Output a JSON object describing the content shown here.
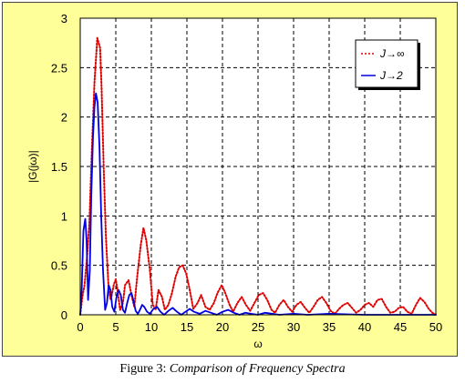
{
  "caption": {
    "prefix": "Figure 3:",
    "title": "Comparison of Frequency Spectra"
  },
  "colors": {
    "panel_background": "#ffff99",
    "plot_background": "#ffffff",
    "grid": "#000000",
    "series_j_inf": "#e00000",
    "series_j_2": "#0000dd"
  },
  "chart_data": {
    "type": "line",
    "xlabel": "ω",
    "ylabel": "|G(jω)|",
    "xlim": [
      0,
      50
    ],
    "ylim": [
      0,
      3
    ],
    "xticks": [
      0,
      5,
      10,
      15,
      20,
      25,
      30,
      35,
      40,
      45,
      50
    ],
    "yticks": [
      0,
      0.5,
      1,
      1.5,
      2,
      2.5,
      3
    ],
    "ytick_labels": [
      "0",
      "0.5",
      "1",
      "1.5",
      "2",
      "2.5",
      "3"
    ],
    "grid": true,
    "grid_style": "dashed",
    "legend_position": "top-right",
    "series": [
      {
        "name": "J→∞",
        "color": "#e00000",
        "style": "dotted",
        "x": [
          0,
          0.3,
          0.6,
          1.0,
          1.3,
          1.6,
          2.0,
          2.4,
          2.8,
          3.0,
          3.3,
          3.6,
          4.0,
          4.3,
          4.7,
          5.0,
          5.3,
          5.6,
          6.0,
          6.3,
          6.8,
          7.2,
          7.6,
          8.0,
          8.5,
          8.9,
          9.3,
          9.8,
          10.2,
          10.6,
          11.0,
          11.5,
          11.9,
          12.4,
          12.9,
          13.4,
          13.9,
          14.4,
          14.9,
          15.4,
          15.9,
          16.5,
          17.0,
          17.6,
          18.2,
          18.8,
          19.3,
          19.9,
          20.4,
          21.0,
          21.5,
          22.1,
          22.7,
          23.3,
          23.9,
          24.5,
          25.1,
          25.7,
          26.3,
          26.9,
          27.4,
          28.0,
          28.6,
          29.2,
          29.8,
          30.4,
          31.0,
          31.6,
          32.2,
          32.8,
          33.4,
          34.0,
          34.6,
          35.2,
          35.8,
          36.4,
          37.0,
          37.6,
          38.2,
          38.8,
          39.4,
          40.0,
          40.6,
          41.2,
          41.8,
          42.4,
          43.0,
          43.6,
          44.2,
          44.8,
          45.4,
          46.0,
          46.6,
          47.2,
          47.8,
          48.4,
          49.0,
          49.5,
          50.0
        ],
        "y": [
          0,
          0.18,
          0.3,
          0.62,
          0.95,
          1.6,
          2.35,
          2.8,
          2.7,
          2.3,
          1.5,
          0.8,
          0.25,
          0.15,
          0.3,
          0.36,
          0.22,
          0.05,
          0.12,
          0.3,
          0.35,
          0.2,
          0.08,
          0.38,
          0.7,
          0.88,
          0.75,
          0.45,
          0.1,
          0.05,
          0.25,
          0.18,
          0.05,
          0.1,
          0.22,
          0.38,
          0.48,
          0.5,
          0.42,
          0.25,
          0.06,
          0.12,
          0.2,
          0.08,
          0.05,
          0.12,
          0.22,
          0.3,
          0.22,
          0.1,
          0.03,
          0.12,
          0.18,
          0.1,
          0.04,
          0.12,
          0.2,
          0.22,
          0.15,
          0.05,
          0.02,
          0.1,
          0.15,
          0.08,
          0.03,
          0.1,
          0.13,
          0.07,
          0.02,
          0.08,
          0.15,
          0.18,
          0.12,
          0.04,
          0.01,
          0.06,
          0.1,
          0.12,
          0.07,
          0.02,
          0.05,
          0.1,
          0.12,
          0.08,
          0.15,
          0.16,
          0.08,
          0.02,
          0.03,
          0.07,
          0.08,
          0.03,
          0.01,
          0.1,
          0.17,
          0.13,
          0.06,
          0.02,
          0.0
        ]
      },
      {
        "name": "J→2",
        "color": "#0000dd",
        "style": "solid",
        "x": [
          0,
          0.2,
          0.45,
          0.7,
          0.9,
          1.1,
          1.35,
          1.55,
          1.8,
          2.0,
          2.2,
          2.45,
          2.7,
          2.95,
          3.2,
          3.5,
          3.75,
          4.0,
          4.25,
          4.5,
          4.8,
          5.1,
          5.4,
          5.7,
          6.0,
          6.3,
          6.6,
          6.9,
          7.2,
          7.5,
          7.8,
          8.1,
          8.4,
          8.7,
          9.0,
          9.4,
          9.8,
          10.3,
          10.8,
          11.3,
          11.8,
          12.4,
          13.0,
          13.6,
          14.2,
          14.8,
          15.4,
          16.0,
          16.8,
          17.6,
          18.4,
          19.2,
          20.0,
          20.8,
          21.6,
          22.4,
          23.2,
          24.0,
          25.0,
          26.0,
          27.0,
          28.0,
          30.0,
          32.0,
          35.0,
          40.0,
          45.0,
          50.0
        ],
        "y": [
          0,
          0.25,
          0.85,
          0.97,
          0.75,
          0.15,
          0.45,
          1.2,
          1.8,
          2.1,
          2.24,
          2.15,
          1.7,
          1.0,
          0.45,
          0.05,
          0.12,
          0.3,
          0.25,
          0.08,
          0.03,
          0.18,
          0.25,
          0.2,
          0.05,
          0.02,
          0.12,
          0.2,
          0.22,
          0.14,
          0.04,
          0.01,
          0.05,
          0.1,
          0.08,
          0.03,
          0.01,
          0.06,
          0.08,
          0.03,
          0.0,
          0.04,
          0.07,
          0.03,
          0.0,
          0.03,
          0.06,
          0.03,
          0.01,
          0.04,
          0.02,
          0.0,
          0.03,
          0.05,
          0.02,
          0.0,
          0.02,
          0.01,
          0.0,
          0.02,
          0.01,
          0.0,
          0.01,
          0.0,
          0.01,
          0.0,
          0.0,
          0.0
        ]
      }
    ]
  }
}
